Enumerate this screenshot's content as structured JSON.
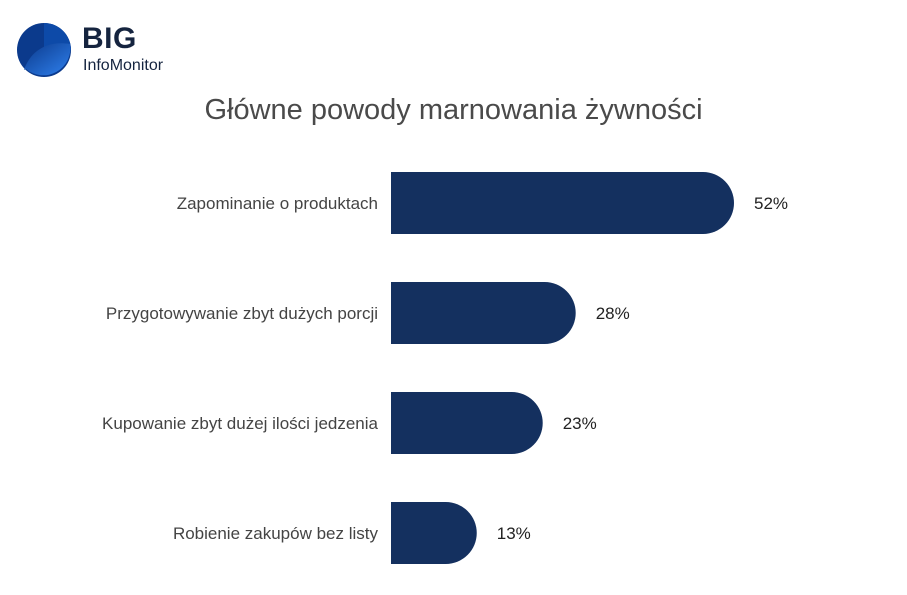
{
  "logo": {
    "brand": "BIG",
    "sub": "InfoMonitor",
    "icon": "big-infomonitor-logo-icon"
  },
  "colors": {
    "bar": "#14305f",
    "logo_light": "#2f80ed",
    "logo_dark": "#0b3a8c"
  },
  "chart_data": {
    "type": "bar",
    "orientation": "horizontal",
    "title": "Główne powody marnowania żywności",
    "categories": [
      "Zapominanie o produktach",
      "Przygotowywanie zbyt dużych porcji",
      "Kupowanie zbyt dużej ilości jedzenia",
      "Robienie zakupów bez listy"
    ],
    "values": [
      52,
      28,
      23,
      13
    ],
    "value_labels": [
      "52%",
      "28%",
      "23%",
      "13%"
    ],
    "unit": "%",
    "xlim": [
      0,
      52
    ],
    "grid": false,
    "legend": "none"
  }
}
